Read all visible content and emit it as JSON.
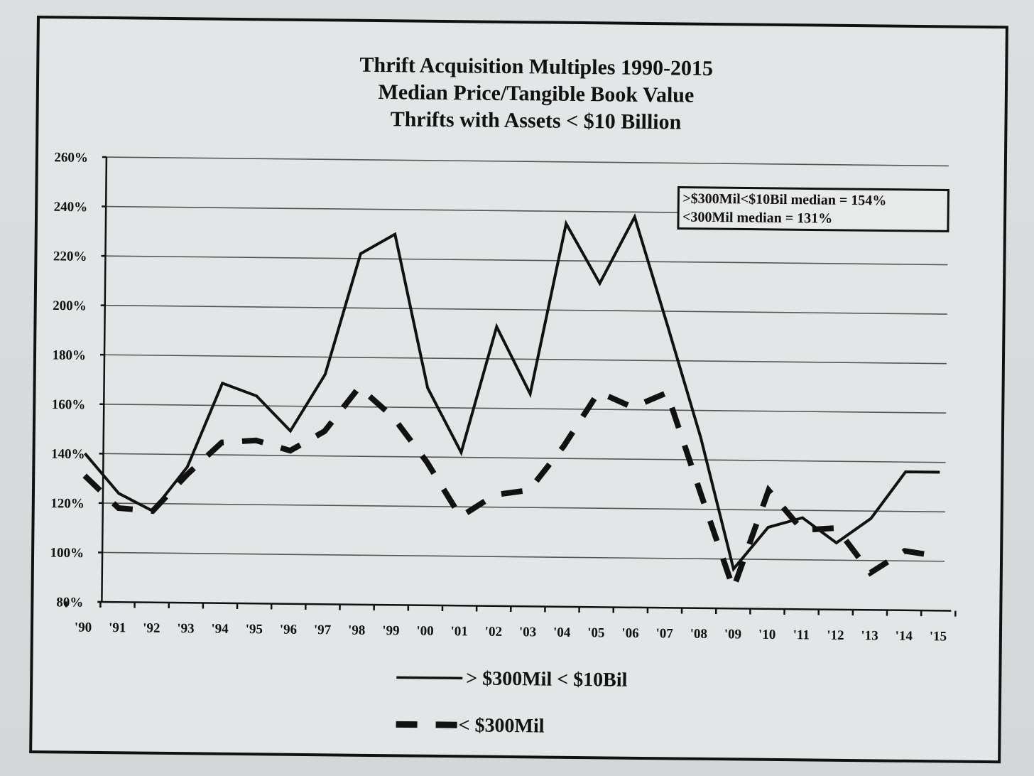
{
  "chart_data": {
    "type": "line",
    "title_lines": [
      "Thrift Acquisition Multiples 1990-2015",
      "Median Price/Tangible Book Value",
      "Thrifts with Assets < $10 Billion"
    ],
    "xlabel": "",
    "ylabel": "",
    "categories": [
      "'90",
      "'91",
      "'92",
      "'93",
      "'94",
      "'95",
      "'96",
      "'97",
      "'98",
      "'99",
      "'00",
      "'01",
      "'02",
      "'03",
      "'04",
      "'05",
      "'06",
      "'07",
      "'08",
      "'09",
      "'10",
      "'11",
      "'12",
      "'13",
      "'14",
      "'15"
    ],
    "yticks": [
      "80%",
      "100%",
      "120%",
      "140%",
      "160%",
      "180%",
      "200%",
      "220%",
      "240%",
      "260%"
    ],
    "ylim": [
      80,
      260
    ],
    "grid": true,
    "legend_position": "bottom-center",
    "series": [
      {
        "name": "> $300Mil < $10Bil",
        "style": "solid",
        "color": "#111111",
        "values": [
          140,
          124,
          117,
          135,
          169,
          164,
          150,
          173,
          222,
          230,
          168,
          142,
          193,
          166,
          235,
          211,
          238,
          194,
          149,
          96,
          113,
          117,
          107,
          117,
          136,
          136
        ]
      },
      {
        "name": "< $300Mil",
        "style": "dashed",
        "color": "#111111",
        "values": [
          131,
          118,
          117,
          132,
          145,
          146,
          142,
          150,
          168,
          156,
          138,
          116,
          125,
          127,
          145,
          167,
          161,
          167,
          127,
          88,
          128,
          112,
          113,
          95,
          104,
          102
        ]
      }
    ],
    "annotation_lines": [
      ">$300Mil<$10Bil median = 154%",
      "<300Mil median = 131%"
    ]
  }
}
